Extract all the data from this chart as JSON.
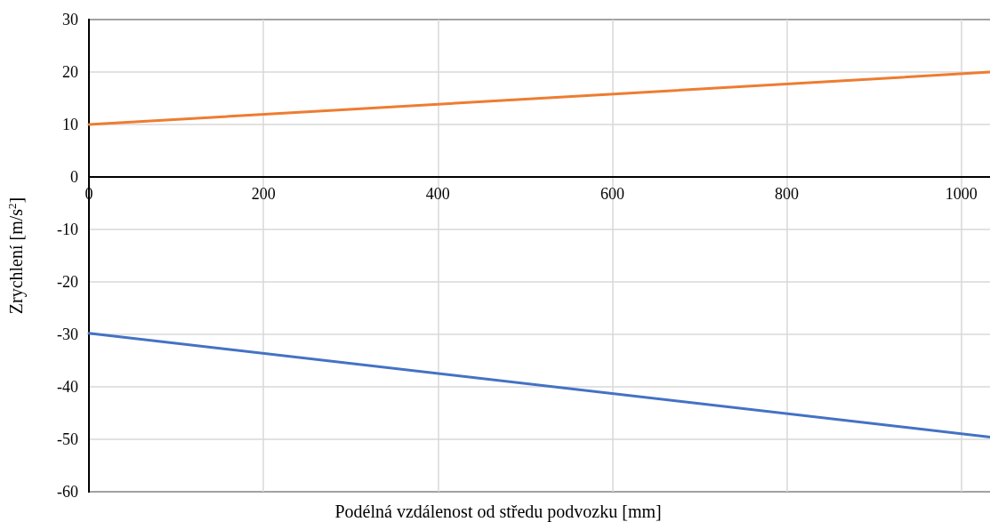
{
  "chart_data": {
    "type": "line",
    "xlabel": "Podélná vzdálenost od středu podvozku [mm]",
    "ylabel": "Zrychlení [m/s$^{2}$]",
    "x": [
      0,
      1035
    ],
    "series": [
      {
        "color": "#ed7d31",
        "values": [
          10,
          20
        ]
      },
      {
        "color": "#4472c4",
        "values": [
          -29.8,
          -49.6
        ]
      }
    ],
    "xlim": [
      0,
      1035
    ],
    "xticks": [
      0,
      200,
      400,
      600,
      800,
      1000
    ],
    "ylim": [
      -60,
      30
    ],
    "yticks": [
      -60,
      -50,
      -40,
      -30,
      -20,
      -10,
      0,
      10,
      20,
      30
    ],
    "grid": true,
    "marker": "none",
    "line_style": "solid"
  }
}
